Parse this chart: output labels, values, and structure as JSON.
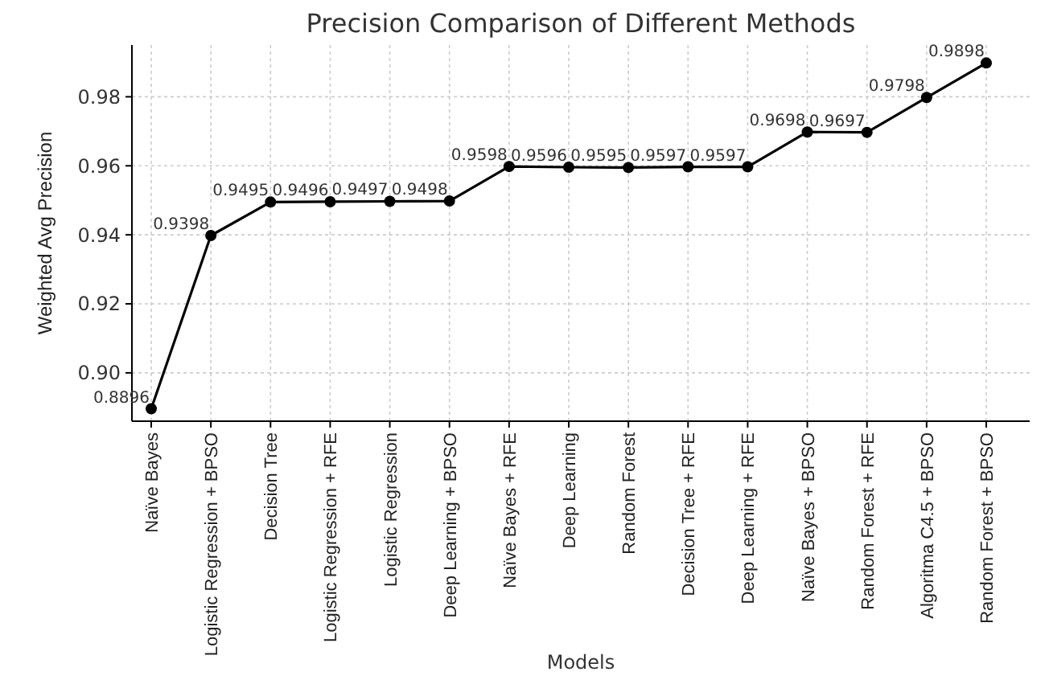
{
  "chart_data": {
    "type": "line",
    "title": "Precision Comparison of Different Methods",
    "xlabel": "Models",
    "ylabel": "Weighted Avg Precision",
    "categories": [
      "Naïve Bayes",
      "Logistic Regression + BPSO",
      "Decision Tree",
      "Logistic Regression + RFE",
      "Logistic Regression",
      "Deep Learning + BPSO",
      "Naïve Bayes + RFE",
      "Deep Learning",
      "Random Forest",
      "Decision Tree + RFE",
      "Deep Learning + RFE",
      "Naïve Bayes + BPSO",
      "Random Forest + RFE",
      "Algoritma C4.5 + BPSO",
      "Random Forest + BPSO"
    ],
    "series": [
      {
        "color": "#000000",
        "values": [
          0.8896,
          0.9398,
          0.9495,
          0.9496,
          0.9497,
          0.9498,
          0.9598,
          0.9596,
          0.9595,
          0.9597,
          0.9597,
          0.9698,
          0.9697,
          0.9798,
          0.9898
        ]
      }
    ],
    "ylim": [
      0.886,
      0.995
    ],
    "yticks": [
      {
        "value": 0.9,
        "label": "0.90"
      },
      {
        "value": 0.92,
        "label": "0.92"
      },
      {
        "value": 0.94,
        "label": "0.94"
      },
      {
        "value": 0.96,
        "label": "0.96"
      },
      {
        "value": 0.98,
        "label": "0.98"
      }
    ],
    "grid": true,
    "marker": "circle",
    "line_style": "solid",
    "data_labels": true
  }
}
